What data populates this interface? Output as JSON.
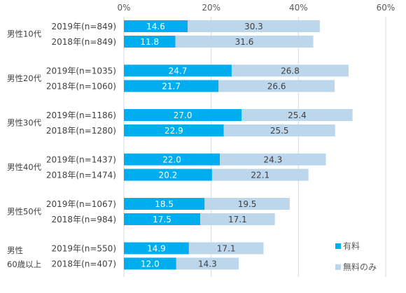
{
  "chart_data": {
    "type": "bar",
    "orientation": "horizontal",
    "stacked": true,
    "title": "",
    "xlabel": "",
    "ylabel": "",
    "xlim": [
      0,
      60
    ],
    "x_ticks": [
      "0%",
      "20%",
      "40%",
      "60%"
    ],
    "grid": true,
    "legend": "bottom-right",
    "groups": [
      {
        "label": "男性10代",
        "rows": [
          {
            "label": "2019年(n=849)",
            "values": [
              14.6,
              30.3
            ]
          },
          {
            "label": "2018年(n=849)",
            "values": [
              11.8,
              31.6
            ]
          }
        ]
      },
      {
        "label": "男性20代",
        "rows": [
          {
            "label": "2019年(n=1035)",
            "values": [
              24.7,
              26.8
            ]
          },
          {
            "label": "2018年(n=1060)",
            "values": [
              21.7,
              26.6
            ]
          }
        ]
      },
      {
        "label": "男性30代",
        "rows": [
          {
            "label": "2019年(n=1186)",
            "values": [
              27.0,
              25.4
            ]
          },
          {
            "label": "2018年(n=1280)",
            "values": [
              22.9,
              25.5
            ]
          }
        ]
      },
      {
        "label": "男性40代",
        "rows": [
          {
            "label": "2019年(n=1437)",
            "values": [
              22.0,
              24.3
            ]
          },
          {
            "label": "2018年(n=1474)",
            "values": [
              20.2,
              22.1
            ]
          }
        ]
      },
      {
        "label": "男性50代",
        "rows": [
          {
            "label": "2019年(n=1067)",
            "values": [
              18.5,
              19.5
            ]
          },
          {
            "label": "2018年(n=984)",
            "values": [
              17.5,
              17.1
            ]
          }
        ]
      },
      {
        "label": "男性\n60歳以上",
        "rows": [
          {
            "label": "2019年(n=550)",
            "values": [
              14.9,
              17.1
            ]
          },
          {
            "label": "2018年(n=407)",
            "values": [
              12.0,
              14.3
            ]
          }
        ]
      }
    ],
    "series": [
      {
        "name": "有料",
        "color": "#00aeef"
      },
      {
        "name": "無料のみ",
        "color": "#bcd6ec"
      }
    ]
  }
}
